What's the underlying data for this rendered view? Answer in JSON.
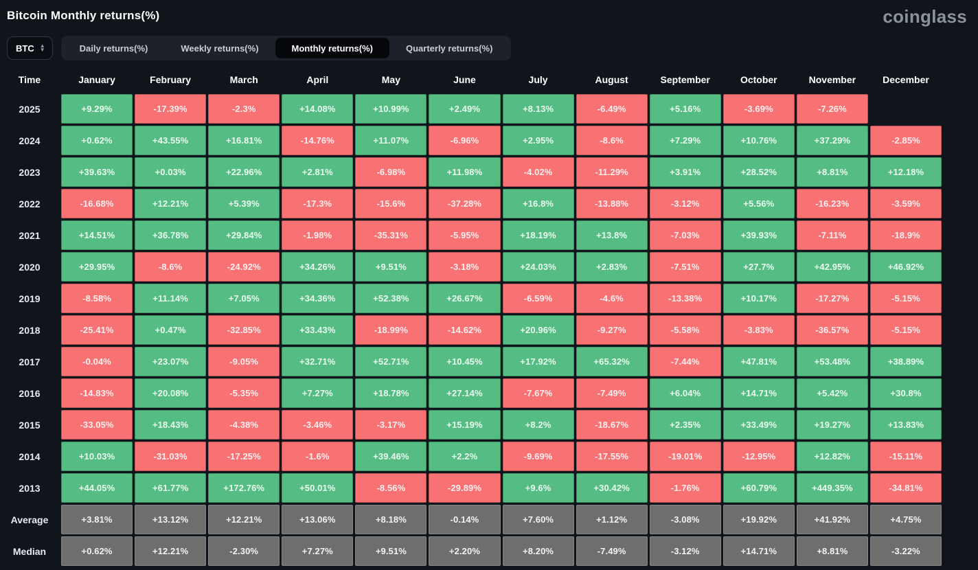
{
  "header": {
    "title": "Bitcoin Monthly returns(%)",
    "logo": "coinglass"
  },
  "controls": {
    "symbol_select": {
      "value": "BTC",
      "chevron_up": "▲",
      "chevron_down": "▼"
    },
    "tabs": [
      {
        "label": "Daily returns(%)",
        "active": false
      },
      {
        "label": "Weekly returns(%)",
        "active": false
      },
      {
        "label": "Monthly returns(%)",
        "active": true
      },
      {
        "label": "Quarterly returns(%)",
        "active": false
      }
    ]
  },
  "colors": {
    "positive": "#55bd83",
    "negative": "#f87173",
    "neutral": "#6e6e6e"
  },
  "chart_data": {
    "type": "heatmap",
    "title": "Bitcoin Monthly returns(%)",
    "columns": [
      "Time",
      "January",
      "February",
      "March",
      "April",
      "May",
      "June",
      "July",
      "August",
      "September",
      "October",
      "November",
      "December"
    ],
    "rows": [
      {
        "label": "2025",
        "kind": "year",
        "cells": [
          "+9.29%",
          "-17.39%",
          "-2.3%",
          "+14.08%",
          "+10.99%",
          "+2.49%",
          "+8.13%",
          "-6.49%",
          "+5.16%",
          "-3.69%",
          "-7.26%",
          null
        ]
      },
      {
        "label": "2024",
        "kind": "year",
        "cells": [
          "+0.62%",
          "+43.55%",
          "+16.81%",
          "-14.76%",
          "+11.07%",
          "-6.96%",
          "+2.95%",
          "-8.6%",
          "+7.29%",
          "+10.76%",
          "+37.29%",
          "-2.85%"
        ]
      },
      {
        "label": "2023",
        "kind": "year",
        "cells": [
          "+39.63%",
          "+0.03%",
          "+22.96%",
          "+2.81%",
          "-6.98%",
          "+11.98%",
          "-4.02%",
          "-11.29%",
          "+3.91%",
          "+28.52%",
          "+8.81%",
          "+12.18%"
        ]
      },
      {
        "label": "2022",
        "kind": "year",
        "cells": [
          "-16.68%",
          "+12.21%",
          "+5.39%",
          "-17.3%",
          "-15.6%",
          "-37.28%",
          "+16.8%",
          "-13.88%",
          "-3.12%",
          "+5.56%",
          "-16.23%",
          "-3.59%"
        ]
      },
      {
        "label": "2021",
        "kind": "year",
        "cells": [
          "+14.51%",
          "+36.78%",
          "+29.84%",
          "-1.98%",
          "-35.31%",
          "-5.95%",
          "+18.19%",
          "+13.8%",
          "-7.03%",
          "+39.93%",
          "-7.11%",
          "-18.9%"
        ]
      },
      {
        "label": "2020",
        "kind": "year",
        "cells": [
          "+29.95%",
          "-8.6%",
          "-24.92%",
          "+34.26%",
          "+9.51%",
          "-3.18%",
          "+24.03%",
          "+2.83%",
          "-7.51%",
          "+27.7%",
          "+42.95%",
          "+46.92%"
        ]
      },
      {
        "label": "2019",
        "kind": "year",
        "cells": [
          "-8.58%",
          "+11.14%",
          "+7.05%",
          "+34.36%",
          "+52.38%",
          "+26.67%",
          "-6.59%",
          "-4.6%",
          "-13.38%",
          "+10.17%",
          "-17.27%",
          "-5.15%"
        ]
      },
      {
        "label": "2018",
        "kind": "year",
        "cells": [
          "-25.41%",
          "+0.47%",
          "-32.85%",
          "+33.43%",
          "-18.99%",
          "-14.62%",
          "+20.96%",
          "-9.27%",
          "-5.58%",
          "-3.83%",
          "-36.57%",
          "-5.15%"
        ]
      },
      {
        "label": "2017",
        "kind": "year",
        "cells": [
          "-0.04%",
          "+23.07%",
          "-9.05%",
          "+32.71%",
          "+52.71%",
          "+10.45%",
          "+17.92%",
          "+65.32%",
          "-7.44%",
          "+47.81%",
          "+53.48%",
          "+38.89%"
        ]
      },
      {
        "label": "2016",
        "kind": "year",
        "cells": [
          "-14.83%",
          "+20.08%",
          "-5.35%",
          "+7.27%",
          "+18.78%",
          "+27.14%",
          "-7.67%",
          "-7.49%",
          "+6.04%",
          "+14.71%",
          "+5.42%",
          "+30.8%"
        ]
      },
      {
        "label": "2015",
        "kind": "year",
        "cells": [
          "-33.05%",
          "+18.43%",
          "-4.38%",
          "-3.46%",
          "-3.17%",
          "+15.19%",
          "+8.2%",
          "-18.67%",
          "+2.35%",
          "+33.49%",
          "+19.27%",
          "+13.83%"
        ]
      },
      {
        "label": "2014",
        "kind": "year",
        "cells": [
          "+10.03%",
          "-31.03%",
          "-17.25%",
          "-1.6%",
          "+39.46%",
          "+2.2%",
          "-9.69%",
          "-17.55%",
          "-19.01%",
          "-12.95%",
          "+12.82%",
          "-15.11%"
        ]
      },
      {
        "label": "2013",
        "kind": "year",
        "cells": [
          "+44.05%",
          "+61.77%",
          "+172.76%",
          "+50.01%",
          "-8.56%",
          "-29.89%",
          "+9.6%",
          "+30.42%",
          "-1.76%",
          "+60.79%",
          "+449.35%",
          "-34.81%"
        ]
      },
      {
        "label": "Average",
        "kind": "summary",
        "cells": [
          "+3.81%",
          "+13.12%",
          "+12.21%",
          "+13.06%",
          "+8.18%",
          "-0.14%",
          "+7.60%",
          "+1.12%",
          "-3.08%",
          "+19.92%",
          "+41.92%",
          "+4.75%"
        ]
      },
      {
        "label": "Median",
        "kind": "summary",
        "cells": [
          "+0.62%",
          "+12.21%",
          "-2.30%",
          "+7.27%",
          "+9.51%",
          "+2.20%",
          "+8.20%",
          "-7.49%",
          "-3.12%",
          "+14.71%",
          "+8.81%",
          "-3.22%"
        ]
      }
    ]
  }
}
